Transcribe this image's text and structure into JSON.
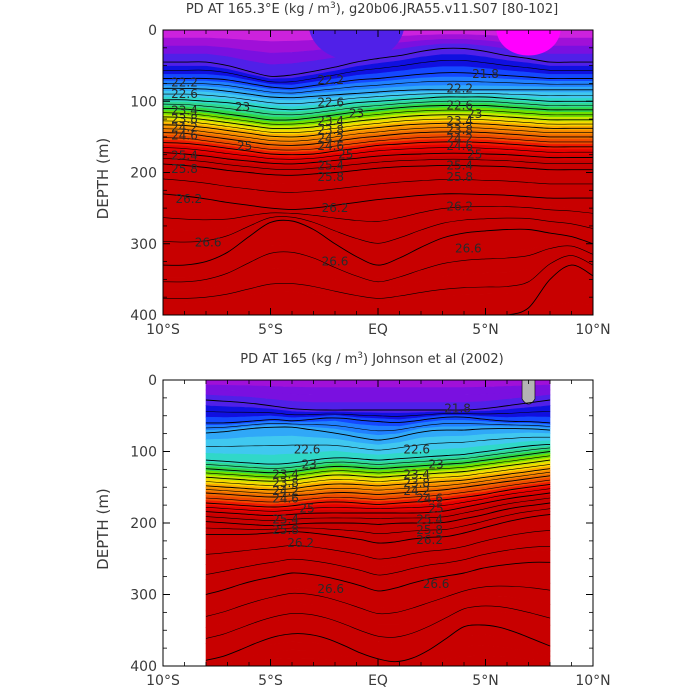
{
  "chart_data": [
    {
      "type": "contour",
      "title_prefix": "PD AT 165.3°E (kg / m",
      "title_sup": "3",
      "title_suffix": "), g20b06.JRA55.v11.S07 [80-102]",
      "xlabel": "",
      "ylabel": "DEPTH (m)",
      "xlim": [
        -10,
        10
      ],
      "ylim": [
        400,
        0
      ],
      "x_ticks": [
        {
          "value": -10,
          "label": "10°S"
        },
        {
          "value": -5,
          "label": "5°S"
        },
        {
          "value": 0,
          "label": "EQ"
        },
        {
          "value": 5,
          "label": "5°N"
        },
        {
          "value": 10,
          "label": "10°N"
        }
      ],
      "y_ticks": [
        {
          "value": 0,
          "label": "0"
        },
        {
          "value": 100,
          "label": "100"
        },
        {
          "value": 200,
          "label": "200"
        },
        {
          "value": 300,
          "label": "300"
        },
        {
          "value": 400,
          "label": "400"
        }
      ],
      "data_extent_x": [
        -10,
        10
      ],
      "surface_min_value": 21.2,
      "surface_min_x": [
        -3.2,
        1.2
      ],
      "surface_max_x": [
        5.5,
        8.5
      ],
      "levels": [
        {
          "value": 21.8,
          "depth": [
            45,
            45,
            45,
            50,
            58,
            65,
            63,
            58,
            52,
            45,
            40,
            36,
            30,
            26,
            26,
            30,
            36,
            40,
            45,
            45,
            45
          ]
        },
        {
          "value": 22.2,
          "depth": [
            68,
            68,
            68,
            70,
            75,
            80,
            82,
            78,
            74,
            70,
            68,
            65,
            62,
            60,
            60,
            62,
            64,
            66,
            68,
            68,
            68
          ]
        },
        {
          "value": 22.6,
          "depth": [
            82,
            82,
            83,
            86,
            90,
            94,
            95,
            93,
            91,
            89,
            87,
            85,
            84,
            84,
            84,
            84,
            84,
            84,
            84,
            84,
            84
          ]
        },
        {
          "value": 23.0,
          "depth": [
            98,
            98,
            100,
            102,
            106,
            110,
            112,
            110,
            106,
            102,
            100,
            98,
            96,
            94,
            94,
            94,
            96,
            98,
            100,
            100,
            100
          ]
        },
        {
          "value": 23.4,
          "depth": [
            110,
            111,
            114,
            118,
            122,
            126,
            126,
            123,
            119,
            115,
            112,
            109,
            107,
            106,
            106,
            106,
            108,
            110,
            112,
            112,
            112
          ]
        },
        {
          "value": 23.8,
          "depth": [
            122,
            123,
            126,
            130,
            134,
            138,
            138,
            136,
            132,
            128,
            125,
            122,
            120,
            119,
            119,
            120,
            122,
            124,
            126,
            126,
            126
          ]
        },
        {
          "value": 24.2,
          "depth": [
            133,
            134,
            137,
            141,
            145,
            149,
            150,
            148,
            144,
            140,
            137,
            134,
            132,
            131,
            131,
            132,
            134,
            136,
            138,
            138,
            138
          ]
        },
        {
          "value": 24.6,
          "depth": [
            144,
            145,
            149,
            153,
            157,
            161,
            162,
            160,
            156,
            152,
            149,
            146,
            144,
            143,
            143,
            144,
            146,
            148,
            150,
            150,
            150
          ]
        },
        {
          "value": 25.0,
          "depth": [
            158,
            159,
            162,
            166,
            170,
            174,
            175,
            174,
            170,
            166,
            162,
            160,
            158,
            157,
            157,
            158,
            160,
            162,
            164,
            164,
            164
          ]
        },
        {
          "value": 25.4,
          "depth": [
            172,
            174,
            177,
            181,
            184,
            187,
            188,
            186,
            183,
            180,
            177,
            175,
            174,
            173,
            173,
            174,
            175,
            177,
            179,
            179,
            179
          ]
        },
        {
          "value": 25.8,
          "depth": [
            188,
            190,
            193,
            197,
            200,
            203,
            204,
            202,
            200,
            197,
            194,
            192,
            191,
            190,
            190,
            191,
            192,
            194,
            196,
            196,
            196
          ]
        },
        {
          "value": 26.2,
          "depth": [
            230,
            233,
            237,
            242,
            246,
            250,
            252,
            250,
            246,
            242,
            238,
            235,
            232,
            230,
            230,
            231,
            232,
            234,
            236,
            236,
            236
          ]
        },
        {
          "value": 26.6,
          "depth": [
            330,
            330,
            325,
            312,
            290,
            270,
            268,
            280,
            300,
            318,
            330,
            320,
            305,
            292,
            285,
            282,
            280,
            280,
            285,
            290,
            300
          ]
        },
        {
          "value": 27.0,
          "depth": [
            400,
            400,
            400,
            400,
            400,
            400,
            400,
            400,
            400,
            400,
            400,
            400,
            400,
            400,
            400,
            400,
            400,
            390,
            350,
            330,
            345
          ]
        }
      ],
      "contour_labels": [
        {
          "text": "22.2",
          "x": -9.0,
          "y": 74
        },
        {
          "text": "22.6",
          "x": -9.0,
          "y": 90
        },
        {
          "text": "23",
          "x": -6.3,
          "y": 108
        },
        {
          "text": "23.4",
          "x": -9.0,
          "y": 113
        },
        {
          "text": "23.8",
          "x": -9.0,
          "y": 125
        },
        {
          "text": "24.2",
          "x": -9.0,
          "y": 137
        },
        {
          "text": "24.6",
          "x": -9.0,
          "y": 148
        },
        {
          "text": "25",
          "x": -6.2,
          "y": 163
        },
        {
          "text": "25.4",
          "x": -9.0,
          "y": 176
        },
        {
          "text": "25.8",
          "x": -9.0,
          "y": 195
        },
        {
          "text": "26.2",
          "x": -8.8,
          "y": 237
        },
        {
          "text": "26.6",
          "x": -7.9,
          "y": 298
        },
        {
          "text": "22.2",
          "x": -2.2,
          "y": 70
        },
        {
          "text": "22.6",
          "x": -2.2,
          "y": 102
        },
        {
          "text": "23",
          "x": -1.0,
          "y": 117
        },
        {
          "text": "23.4",
          "x": -2.2,
          "y": 128
        },
        {
          "text": "23.8",
          "x": -2.2,
          "y": 140
        },
        {
          "text": "24.2",
          "x": -2.2,
          "y": 152
        },
        {
          "text": "24.6",
          "x": -2.2,
          "y": 163
        },
        {
          "text": "25",
          "x": -1.5,
          "y": 175
        },
        {
          "text": "25.4",
          "x": -2.2,
          "y": 190
        },
        {
          "text": "25.8",
          "x": -2.2,
          "y": 206
        },
        {
          "text": "26.2",
          "x": -2.0,
          "y": 250
        },
        {
          "text": "26.6",
          "x": -2.0,
          "y": 325
        },
        {
          "text": "21.8",
          "x": 5.0,
          "y": 62
        },
        {
          "text": "22.2",
          "x": 3.8,
          "y": 82
        },
        {
          "text": "22.6",
          "x": 3.8,
          "y": 106
        },
        {
          "text": "23",
          "x": 4.5,
          "y": 118
        },
        {
          "text": "23.4",
          "x": 3.8,
          "y": 128
        },
        {
          "text": "23.8",
          "x": 3.8,
          "y": 140
        },
        {
          "text": "24.2",
          "x": 3.8,
          "y": 152
        },
        {
          "text": "24.6",
          "x": 3.8,
          "y": 163
        },
        {
          "text": "25",
          "x": 4.5,
          "y": 175
        },
        {
          "text": "25.4",
          "x": 3.8,
          "y": 190
        },
        {
          "text": "25.8",
          "x": 3.8,
          "y": 206
        },
        {
          "text": "26.2",
          "x": 3.8,
          "y": 248
        },
        {
          "text": "26.6",
          "x": 4.2,
          "y": 307
        }
      ]
    },
    {
      "type": "contour",
      "title_prefix": "PD AT 165 (kg / m",
      "title_sup": "3",
      "title_suffix": ") Johnson et al (2002)",
      "xlabel": "",
      "ylabel": "DEPTH (m)",
      "xlim": [
        -10,
        10
      ],
      "ylim": [
        400,
        0
      ],
      "x_ticks": [
        {
          "value": -10,
          "label": "10°S"
        },
        {
          "value": -5,
          "label": "5°S"
        },
        {
          "value": 0,
          "label": "EQ"
        },
        {
          "value": 5,
          "label": "5°N"
        },
        {
          "value": 10,
          "label": "10°N"
        }
      ],
      "y_ticks": [
        {
          "value": 0,
          "label": "0"
        },
        {
          "value": 100,
          "label": "100"
        },
        {
          "value": 200,
          "label": "200"
        },
        {
          "value": 300,
          "label": "300"
        },
        {
          "value": 400,
          "label": "400"
        }
      ],
      "data_extent_x": [
        -8,
        8
      ],
      "surface_min_value": 21.4,
      "missing_patch": {
        "x": [
          6.7,
          7.3
        ],
        "depth": [
          0,
          35
        ]
      },
      "levels": [
        {
          "value": 21.8,
          "depth": [
            28,
            30,
            32,
            36,
            40,
            42,
            42,
            42,
            42,
            42,
            42,
            42,
            42,
            40,
            36,
            32,
            28
          ]
        },
        {
          "value": 22.2,
          "depth": [
            60,
            60,
            58,
            55,
            57,
            55,
            52,
            56,
            58,
            60,
            56,
            52,
            52,
            55,
            58,
            58,
            60
          ]
        },
        {
          "value": 22.6,
          "depth": [
            74,
            72,
            68,
            66,
            66,
            70,
            74,
            80,
            84,
            80,
            72,
            70,
            70,
            68,
            68,
            68,
            70
          ]
        },
        {
          "value": 23.0,
          "depth": [
            112,
            114,
            116,
            118,
            116,
            112,
            108,
            110,
            112,
            110,
            108,
            106,
            104,
            100,
            96,
            92,
            90
          ]
        },
        {
          "value": 23.4,
          "depth": [
            124,
            126,
            128,
            130,
            128,
            124,
            120,
            122,
            124,
            122,
            120,
            118,
            116,
            112,
            108,
            104,
            100
          ]
        },
        {
          "value": 23.8,
          "depth": [
            136,
            138,
            140,
            142,
            140,
            136,
            132,
            134,
            136,
            134,
            132,
            130,
            128,
            124,
            120,
            116,
            112
          ]
        },
        {
          "value": 24.2,
          "depth": [
            148,
            150,
            152,
            154,
            152,
            148,
            145,
            146,
            148,
            146,
            144,
            142,
            140,
            136,
            132,
            128,
            124
          ]
        },
        {
          "value": 24.6,
          "depth": [
            158,
            160,
            162,
            164,
            162,
            160,
            157,
            158,
            160,
            158,
            156,
            154,
            150,
            146,
            142,
            138,
            134
          ]
        },
        {
          "value": 25.0,
          "depth": [
            172,
            174,
            176,
            178,
            176,
            172,
            170,
            172,
            174,
            172,
            170,
            168,
            164,
            160,
            154,
            150,
            146
          ]
        },
        {
          "value": 25.4,
          "depth": [
            184,
            186,
            188,
            190,
            188,
            186,
            186,
            186,
            186,
            186,
            186,
            184,
            178,
            172,
            166,
            162,
            158
          ]
        },
        {
          "value": 25.8,
          "depth": [
            198,
            200,
            202,
            204,
            202,
            200,
            200,
            200,
            202,
            200,
            200,
            200,
            194,
            188,
            180,
            176,
            172
          ]
        },
        {
          "value": 26.2,
          "depth": [
            216,
            216,
            216,
            214,
            212,
            214,
            218,
            222,
            228,
            226,
            220,
            220,
            214,
            206,
            198,
            192,
            188
          ]
        },
        {
          "value": 26.6,
          "depth": [
            300,
            292,
            282,
            276,
            270,
            272,
            278,
            286,
            295,
            290,
            280,
            275,
            270,
            262,
            258,
            255,
            255
          ]
        },
        {
          "value": 27.0,
          "depth": [
            392,
            385,
            372,
            360,
            355,
            356,
            365,
            380,
            390,
            395,
            385,
            365,
            345,
            342,
            348,
            360,
            372
          ]
        }
      ],
      "contour_labels": [
        {
          "text": "21.8",
          "x": 3.7,
          "y": 40
        },
        {
          "text": "22.6",
          "x": -3.3,
          "y": 97
        },
        {
          "text": "23",
          "x": -3.2,
          "y": 118
        },
        {
          "text": "23.4",
          "x": -4.3,
          "y": 132
        },
        {
          "text": "23.8",
          "x": -4.3,
          "y": 144
        },
        {
          "text": "24.2",
          "x": -4.3,
          "y": 155
        },
        {
          "text": "24.6",
          "x": -4.3,
          "y": 166
        },
        {
          "text": "25",
          "x": -3.3,
          "y": 180
        },
        {
          "text": "25.4",
          "x": -4.3,
          "y": 195
        },
        {
          "text": "25.8",
          "x": -4.3,
          "y": 210
        },
        {
          "text": "26.2",
          "x": -3.6,
          "y": 228
        },
        {
          "text": "26.6",
          "x": -2.2,
          "y": 292
        },
        {
          "text": "22.6",
          "x": 1.8,
          "y": 97
        },
        {
          "text": "23",
          "x": 2.7,
          "y": 118
        },
        {
          "text": "23.4",
          "x": 1.8,
          "y": 132
        },
        {
          "text": "23.8",
          "x": 1.8,
          "y": 144
        },
        {
          "text": "24.2",
          "x": 1.8,
          "y": 155
        },
        {
          "text": "24.6",
          "x": 2.4,
          "y": 166
        },
        {
          "text": "25",
          "x": 2.7,
          "y": 180
        },
        {
          "text": "25.4",
          "x": 2.4,
          "y": 195
        },
        {
          "text": "25.8",
          "x": 2.4,
          "y": 210
        },
        {
          "text": "26.2",
          "x": 2.4,
          "y": 224
        },
        {
          "text": "26.6",
          "x": 2.7,
          "y": 285
        }
      ]
    }
  ],
  "colors": {
    "palette": [
      "#ff00ff",
      "#cc22dd",
      "#a010d8",
      "#7a10e0",
      "#5020e8",
      "#1010e0",
      "#1448ff",
      "#2080ff",
      "#30a8f8",
      "#40c8f0",
      "#30d8c8",
      "#30d890",
      "#30d848",
      "#70e000",
      "#c8e800",
      "#f8d800",
      "#fca800",
      "#f88800",
      "#f06800",
      "#f04800",
      "#ee1800",
      "#e60000",
      "#d40000",
      "#c80000"
    ],
    "missing": "#b4b4b4",
    "line": "#000000",
    "frame": "#000000",
    "text": "#3a3a3a"
  }
}
